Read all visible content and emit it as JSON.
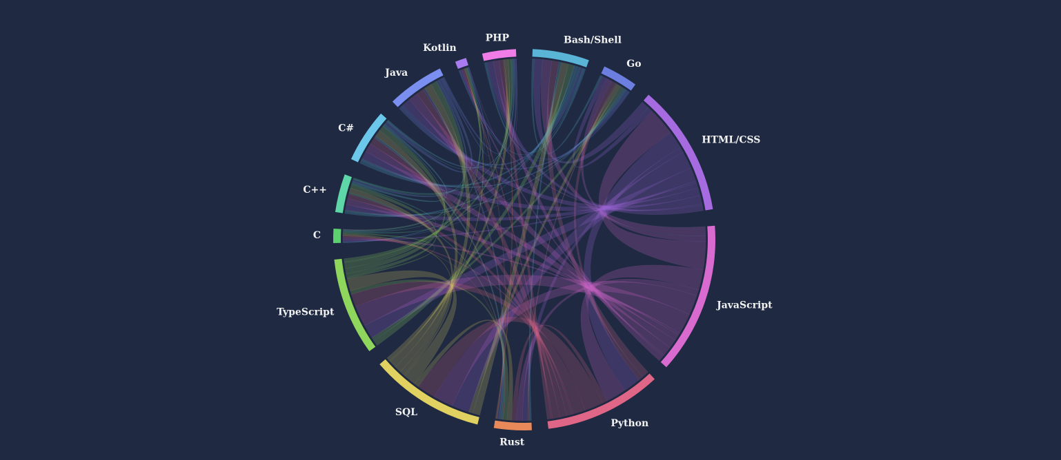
{
  "chart_data": {
    "type": "chord",
    "groups": [
      {
        "name": "Bash/Shell",
        "color": "#5ab4d6"
      },
      {
        "name": "Go",
        "color": "#6c7fe0"
      },
      {
        "name": "HTML/CSS",
        "color": "#a66be0"
      },
      {
        "name": "JavaScript",
        "color": "#d96bd0"
      },
      {
        "name": "Python",
        "color": "#e06688"
      },
      {
        "name": "Rust",
        "color": "#e8895a"
      },
      {
        "name": "SQL",
        "color": "#e0d160"
      },
      {
        "name": "TypeScript",
        "color": "#8fd65c"
      },
      {
        "name": "C",
        "color": "#5ed16f"
      },
      {
        "name": "C++",
        "color": "#5ed6a8"
      },
      {
        "name": "C#",
        "color": "#6cc8ea"
      },
      {
        "name": "Java",
        "color": "#7b8ff0"
      },
      {
        "name": "Kotlin",
        "color": "#a87cf0"
      },
      {
        "name": "PHP",
        "color": "#f07ce8"
      }
    ],
    "matrix": [
      [
        0,
        9,
        35,
        40,
        31,
        9,
        31,
        25,
        3,
        9,
        14,
        14,
        3,
        8
      ],
      [
        9,
        0,
        21,
        24,
        19,
        6,
        18,
        15,
        2,
        6,
        8,
        9,
        2,
        5
      ],
      [
        35,
        21,
        0,
        120,
        76,
        23,
        74,
        59,
        8,
        23,
        33,
        35,
        6,
        25
      ],
      [
        40,
        24,
        120,
        0,
        87,
        26,
        85,
        90,
        9,
        26,
        38,
        40,
        7,
        25
      ],
      [
        31,
        19,
        76,
        87,
        0,
        20,
        80,
        54,
        7,
        20,
        30,
        31,
        6,
        17
      ],
      [
        9,
        6,
        23,
        26,
        20,
        0,
        20,
        16,
        2,
        6,
        9,
        9,
        2,
        5
      ],
      [
        31,
        18,
        74,
        85,
        80,
        20,
        0,
        52,
        7,
        20,
        29,
        31,
        5,
        16
      ],
      [
        25,
        15,
        59,
        90,
        54,
        16,
        52,
        0,
        6,
        16,
        23,
        25,
        4,
        13
      ],
      [
        3,
        2,
        8,
        9,
        7,
        2,
        7,
        6,
        0,
        5,
        3,
        3,
        1,
        2
      ],
      [
        9,
        6,
        23,
        26,
        20,
        6,
        20,
        16,
        5,
        0,
        9,
        9,
        2,
        5
      ],
      [
        14,
        8,
        33,
        38,
        30,
        9,
        29,
        23,
        3,
        9,
        0,
        14,
        2,
        7
      ],
      [
        14,
        9,
        35,
        40,
        31,
        9,
        31,
        25,
        3,
        9,
        14,
        0,
        5,
        8
      ],
      [
        3,
        2,
        6,
        7,
        6,
        2,
        5,
        4,
        1,
        2,
        2,
        5,
        0,
        1
      ],
      [
        8,
        5,
        25,
        25,
        17,
        5,
        16,
        13,
        2,
        5,
        7,
        8,
        1,
        0
      ]
    ]
  }
}
